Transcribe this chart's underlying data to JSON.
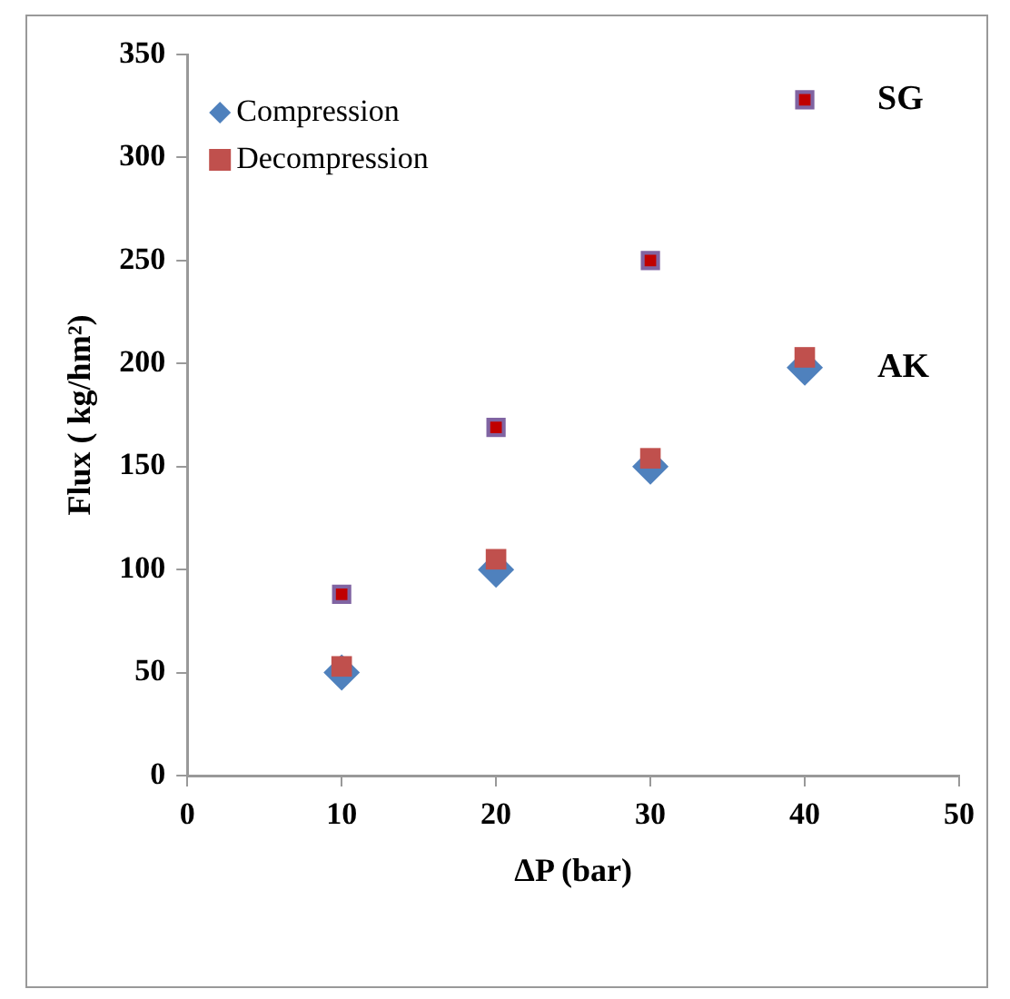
{
  "chart_data": {
    "type": "scatter",
    "xlabel": "ΔP (bar)",
    "ylabel": "Flux ( kg/hm²)",
    "x": [
      10,
      20,
      30,
      40
    ],
    "series": [
      {
        "name": "Compression",
        "color": "#4f81bd",
        "marker": "diamond",
        "values": [
          50,
          100,
          150,
          198
        ]
      },
      {
        "name": "Decompression",
        "color": "#c0504d",
        "marker": "square",
        "values": [
          53,
          105,
          154,
          203
        ]
      },
      {
        "color": "#8064a2",
        "marker": "square",
        "values": [
          88,
          169,
          250,
          328
        ]
      },
      {
        "color": "#c00000",
        "marker": "square",
        "values": [
          88,
          169,
          250,
          328
        ]
      }
    ],
    "xlim": [
      0,
      50
    ],
    "xticks": [
      0,
      10,
      20,
      30,
      40,
      50
    ],
    "ylim": [
      0,
      350
    ],
    "yticks": [
      0,
      50,
      100,
      150,
      200,
      250,
      300,
      350
    ],
    "grid": false,
    "legend": "top left",
    "annotations": [
      {
        "text": "SG",
        "x": 40,
        "y": 328
      },
      {
        "text": "AK",
        "x": 40,
        "y": 198
      }
    ]
  }
}
